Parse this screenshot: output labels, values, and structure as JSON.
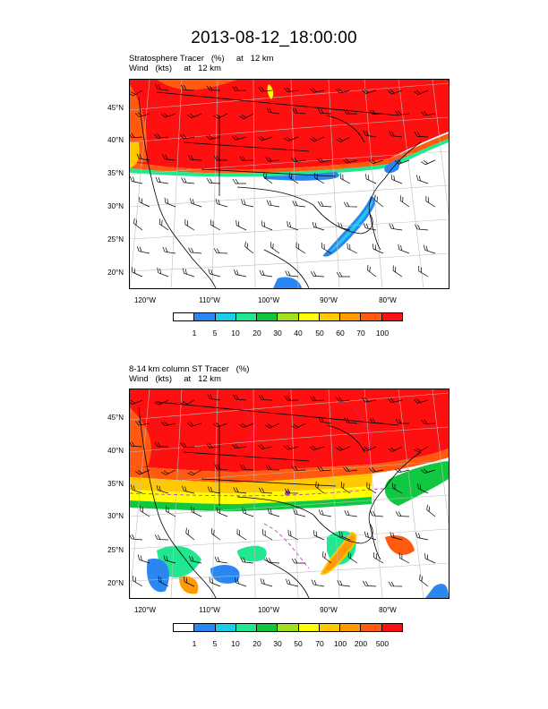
{
  "figure": {
    "title": "2013-08-12_18:00:00"
  },
  "panels": [
    {
      "title_line1": "Stratosphere Tracer   (%)     at   12 km",
      "title_line2": "Wind   (kts)     at   12 km",
      "lat_labels": [
        "45°N",
        "40°N",
        "35°N",
        "30°N",
        "25°N",
        "20°N"
      ],
      "lon_labels": [
        "120°W",
        "110°W",
        "100°W",
        "90°W",
        "80°W"
      ],
      "colorbar_labels": [
        "1",
        "5",
        "10",
        "20",
        "30",
        "40",
        "50",
        "60",
        "70",
        "100"
      ],
      "colorbar_colors": [
        "#ffffff",
        "#2a86f0",
        "#1ecbf0",
        "#20e890",
        "#10c840",
        "#a0e020",
        "#ffff00",
        "#ffc800",
        "#ff9a00",
        "#ff5a10",
        "#ff1010"
      ]
    },
    {
      "title_line1": "8-14 km column ST Tracer   (%)",
      "title_line2": "Wind   (kts)     at   12 km",
      "lat_labels": [
        "45°N",
        "40°N",
        "35°N",
        "30°N",
        "25°N",
        "20°N"
      ],
      "lon_labels": [
        "120°W",
        "110°W",
        "100°W",
        "90°W",
        "80°W"
      ],
      "colorbar_labels": [
        "1",
        "5",
        "10",
        "20",
        "30",
        "50",
        "70",
        "100",
        "200",
        "500"
      ],
      "colorbar_colors": [
        "#ffffff",
        "#2a86f0",
        "#1ecbf0",
        "#20e890",
        "#10c840",
        "#a0e020",
        "#ffff00",
        "#ffc800",
        "#ff9a00",
        "#ff5a10",
        "#ff1010"
      ]
    }
  ]
}
